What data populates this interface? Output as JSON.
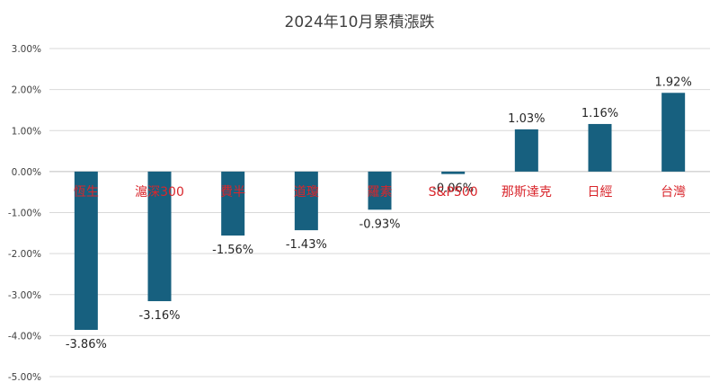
{
  "chart_data": {
    "type": "bar",
    "title": "2024年10月累積漲跌",
    "xlabel": "",
    "ylabel": "",
    "categories": [
      "恆生",
      "滬深300",
      "費半",
      "道瓊",
      "羅素",
      "S&P500",
      "那斯達克",
      "日經",
      "台灣"
    ],
    "values": [
      -3.86,
      -3.16,
      -1.56,
      -1.43,
      -0.93,
      -0.06,
      1.03,
      1.16,
      1.92
    ],
    "data_labels": [
      "-3.86%",
      "-3.16%",
      "-1.56%",
      "-1.43%",
      "-0.93%",
      "-0.06%",
      "1.03%",
      "1.16%",
      "1.92%"
    ],
    "ylim": [
      -5,
      3
    ],
    "yticks": [
      3,
      2,
      1,
      0,
      -1,
      -2,
      -3,
      -4,
      -5
    ],
    "ytick_labels": [
      "3.00%",
      "2.00%",
      "1.00%",
      "0.00%",
      "-1.00%",
      "-2.00%",
      "-3.00%",
      "-4.00%",
      "-5.00%"
    ],
    "grid": true,
    "legend": "none",
    "colors": {
      "bar": "#17607f",
      "category_label": "#d9262c",
      "grid": "#d9d9d9",
      "text": "#404040"
    }
  }
}
